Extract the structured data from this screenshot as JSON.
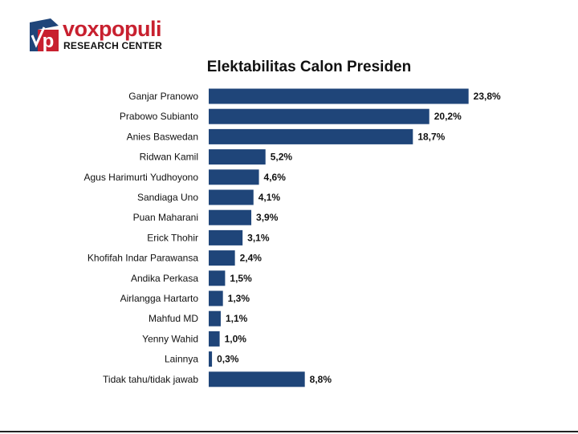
{
  "header": {
    "brand": "voxpopuli",
    "brand_sub": "RESEARCH CENTER",
    "logo_letter": "p"
  },
  "colors": {
    "bar": "#1f4579",
    "brand_red": "#c8202f",
    "logo_blue": "#1f4579"
  },
  "chart_data": {
    "type": "bar",
    "orientation": "horizontal",
    "title": "Elektabilitas Calon Presiden",
    "categories": [
      "Ganjar Pranowo",
      "Prabowo Subianto",
      "Anies Baswedan",
      "Ridwan Kamil",
      "Agus Harimurti Yudhoyono",
      "Sandiaga Uno",
      "Puan Maharani",
      "Erick Thohir",
      "Khofifah Indar Parawansa",
      "Andika Perkasa",
      "Airlangga Hartarto",
      "Mahfud MD",
      "Yenny Wahid",
      "Lainnya",
      "Tidak tahu/tidak jawab"
    ],
    "values": [
      23.8,
      20.2,
      18.7,
      5.2,
      4.6,
      4.1,
      3.9,
      3.1,
      2.4,
      1.5,
      1.3,
      1.1,
      1.0,
      0.3,
      8.8
    ],
    "labels": [
      "23,8%",
      "20,2%",
      "18,7%",
      "5,2%",
      "4,6%",
      "4,1%",
      "3,9%",
      "3,1%",
      "2,4%",
      "1,5%",
      "1,3%",
      "1,1%",
      "1,0%",
      "0,3%",
      "8,8%"
    ],
    "xlim": [
      0,
      25
    ],
    "grid": false,
    "xlabel": "",
    "ylabel": ""
  }
}
